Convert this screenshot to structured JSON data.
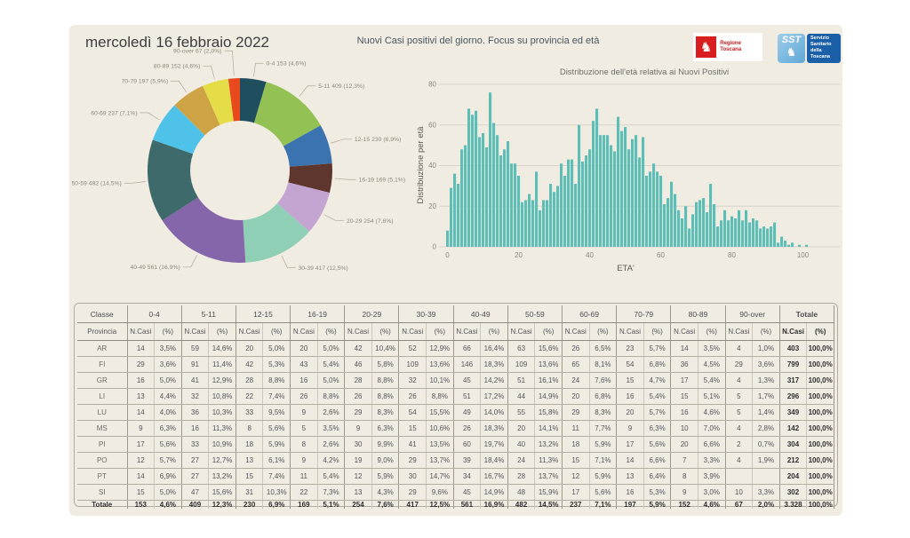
{
  "page": {
    "date_title": "mercoledì 16 febbraio 2022",
    "main_title": "Nuovi Casi positivi del giorno. Focus su provincia ed età",
    "panel_background": "#f1ece2"
  },
  "logos": {
    "regione_toscana": "Regione Toscana",
    "sst_acronym": "SST",
    "sst_label": "Servizio\nSanitario\ndella\nToscana",
    "pegasus_glyph": "♞"
  },
  "chart_data": [
    {
      "type": "pie",
      "subtype": "donut",
      "slices": [
        {
          "label": "0-4",
          "count": 153,
          "pct": "4,6%",
          "color": "#1f4e5f"
        },
        {
          "label": "5-11",
          "count": 409,
          "pct": "12,3%",
          "color": "#94c153"
        },
        {
          "label": "12-15",
          "count": 230,
          "pct": "6,9%",
          "color": "#3a73b0"
        },
        {
          "label": "16-19",
          "count": 169,
          "pct": "5,1%",
          "color": "#5f362d"
        },
        {
          "label": "20-29",
          "count": 254,
          "pct": "7,6%",
          "color": "#c4a5d1"
        },
        {
          "label": "30-39",
          "count": 417,
          "pct": "12,5%",
          "color": "#8ecfb5"
        },
        {
          "label": "40-49",
          "count": 561,
          "pct": "16,9%",
          "color": "#8566aa"
        },
        {
          "label": "50-59",
          "count": 482,
          "pct": "14,5%",
          "color": "#3e6a6b"
        },
        {
          "label": "60-69",
          "count": 237,
          "pct": "7,1%",
          "color": "#4ec2e8"
        },
        {
          "label": "70-79",
          "count": 197,
          "pct": "5,9%",
          "color": "#cda345"
        },
        {
          "label": "80-89",
          "count": 152,
          "pct": "4,6%",
          "color": "#e4dd47"
        },
        {
          "label": "90-over",
          "count": 67,
          "pct": "2,0%",
          "color": "#e8491d"
        }
      ]
    },
    {
      "type": "bar",
      "title": "Distribuzione dell'età relativa ai Nuovi Positivi",
      "xlabel": "ETA'",
      "ylabel": "Distribuzione per età",
      "color": "#5cbeb6",
      "ylim": [
        0,
        80
      ],
      "yticks": [
        0,
        20,
        40,
        60,
        80
      ],
      "xticks": [
        0,
        20,
        40,
        60,
        80,
        100
      ],
      "x_start_age": 0,
      "values": [
        8,
        29,
        36,
        31,
        48,
        50,
        68,
        65,
        67,
        54,
        56,
        49,
        76,
        61,
        55,
        45,
        48,
        52,
        41,
        41,
        35,
        22,
        23,
        26,
        23,
        37,
        18,
        23,
        23,
        31,
        27,
        30,
        41,
        35,
        43,
        43,
        31,
        60,
        42,
        45,
        48,
        62,
        68,
        55,
        55,
        55,
        50,
        47,
        64,
        57,
        59,
        48,
        53,
        55,
        44,
        54,
        35,
        37,
        41,
        37,
        35,
        21,
        24,
        32,
        26,
        18,
        14,
        20,
        9,
        16,
        22,
        23,
        24,
        17,
        31,
        21,
        10,
        13,
        18,
        13,
        15,
        14,
        18,
        13,
        18,
        12,
        14,
        13,
        9,
        10,
        9,
        10,
        12,
        2,
        5,
        3,
        1,
        2,
        0,
        1,
        0,
        1
      ]
    },
    {
      "type": "table",
      "corner": {
        "top": "Classe",
        "bottom": "Provincia"
      },
      "groups": [
        "0-4",
        "5-11",
        "12-15",
        "16-19",
        "20-29",
        "30-39",
        "40-49",
        "50-59",
        "60-69",
        "70-79",
        "80-89",
        "90-over",
        "Totale"
      ],
      "sub_headers": [
        "N.Casi",
        "(%)"
      ],
      "rows": [
        {
          "provincia": "AR",
          "values": [
            "14",
            "3,5%",
            "59",
            "14,6%",
            "20",
            "5,0%",
            "20",
            "5,0%",
            "42",
            "10,4%",
            "52",
            "12,9%",
            "66",
            "16,4%",
            "63",
            "15,6%",
            "26",
            "6,5%",
            "23",
            "5,7%",
            "14",
            "3,5%",
            "4",
            "1,0%",
            "403",
            "100,0%"
          ]
        },
        {
          "provincia": "FI",
          "values": [
            "29",
            "3,6%",
            "91",
            "11,4%",
            "42",
            "5,3%",
            "43",
            "5,4%",
            "46",
            "5,8%",
            "109",
            "13,6%",
            "146",
            "18,3%",
            "109",
            "13,6%",
            "65",
            "8,1%",
            "54",
            "6,8%",
            "36",
            "4,5%",
            "29",
            "3,6%",
            "799",
            "100,0%"
          ]
        },
        {
          "provincia": "GR",
          "values": [
            "16",
            "5,0%",
            "41",
            "12,9%",
            "28",
            "8,8%",
            "16",
            "5,0%",
            "28",
            "8,8%",
            "32",
            "10,1%",
            "45",
            "14,2%",
            "51",
            "16,1%",
            "24",
            "7,6%",
            "15",
            "4,7%",
            "17",
            "5,4%",
            "4",
            "1,3%",
            "317",
            "100,0%"
          ]
        },
        {
          "provincia": "LI",
          "values": [
            "13",
            "4,4%",
            "32",
            "10,8%",
            "22",
            "7,4%",
            "26",
            "8,8%",
            "26",
            "8,8%",
            "26",
            "8,8%",
            "51",
            "17,2%",
            "44",
            "14,9%",
            "20",
            "6,8%",
            "16",
            "5,4%",
            "15",
            "5,1%",
            "5",
            "1,7%",
            "296",
            "100,0%"
          ]
        },
        {
          "provincia": "LU",
          "values": [
            "14",
            "4,0%",
            "36",
            "10,3%",
            "33",
            "9,5%",
            "9",
            "2,6%",
            "29",
            "8,3%",
            "54",
            "15,5%",
            "49",
            "14,0%",
            "55",
            "15,8%",
            "29",
            "8,3%",
            "20",
            "5,7%",
            "16",
            "4,6%",
            "5",
            "1,4%",
            "349",
            "100,0%"
          ]
        },
        {
          "provincia": "MS",
          "values": [
            "9",
            "6,3%",
            "16",
            "11,3%",
            "8",
            "5,6%",
            "5",
            "3,5%",
            "9",
            "6,3%",
            "15",
            "10,6%",
            "26",
            "18,3%",
            "20",
            "14,1%",
            "11",
            "7,7%",
            "9",
            "6,3%",
            "10",
            "7,0%",
            "4",
            "2,8%",
            "142",
            "100,0%"
          ]
        },
        {
          "provincia": "PI",
          "values": [
            "17",
            "5,6%",
            "33",
            "10,9%",
            "18",
            "5,9%",
            "8",
            "2,6%",
            "30",
            "9,9%",
            "41",
            "13,5%",
            "60",
            "19,7%",
            "40",
            "13,2%",
            "18",
            "5,9%",
            "17",
            "5,6%",
            "20",
            "6,6%",
            "2",
            "0,7%",
            "304",
            "100,0%"
          ]
        },
        {
          "provincia": "PO",
          "values": [
            "12",
            "5,7%",
            "27",
            "12,7%",
            "13",
            "6,1%",
            "9",
            "4,2%",
            "19",
            "9,0%",
            "29",
            "13,7%",
            "39",
            "18,4%",
            "24",
            "11,3%",
            "15",
            "7,1%",
            "14",
            "6,6%",
            "7",
            "3,3%",
            "4",
            "1,9%",
            "212",
            "100,0%"
          ]
        },
        {
          "provincia": "PT",
          "values": [
            "14",
            "6,9%",
            "27",
            "13,2%",
            "15",
            "7,4%",
            "11",
            "5,4%",
            "12",
            "5,9%",
            "30",
            "14,7%",
            "34",
            "16,7%",
            "28",
            "13,7%",
            "12",
            "5,9%",
            "13",
            "6,4%",
            "8",
            "3,9%",
            "",
            "",
            "204",
            "100,0%"
          ]
        },
        {
          "provincia": "SI",
          "values": [
            "15",
            "5,0%",
            "47",
            "15,6%",
            "31",
            "10,3%",
            "22",
            "7,3%",
            "13",
            "4,3%",
            "29",
            "9,6%",
            "45",
            "14,9%",
            "48",
            "15,9%",
            "17",
            "5,6%",
            "16",
            "5,3%",
            "9",
            "3,0%",
            "10",
            "3,3%",
            "302",
            "100,0%"
          ]
        }
      ],
      "total_row": {
        "provincia": "Totale",
        "values": [
          "153",
          "4,6%",
          "409",
          "12,3%",
          "230",
          "6,9%",
          "169",
          "5,1%",
          "254",
          "7,6%",
          "417",
          "12,5%",
          "561",
          "16,9%",
          "482",
          "14,5%",
          "237",
          "7,1%",
          "197",
          "5,9%",
          "152",
          "4,6%",
          "67",
          "2,0%",
          "3.328",
          "100,0%"
        ]
      }
    }
  ]
}
